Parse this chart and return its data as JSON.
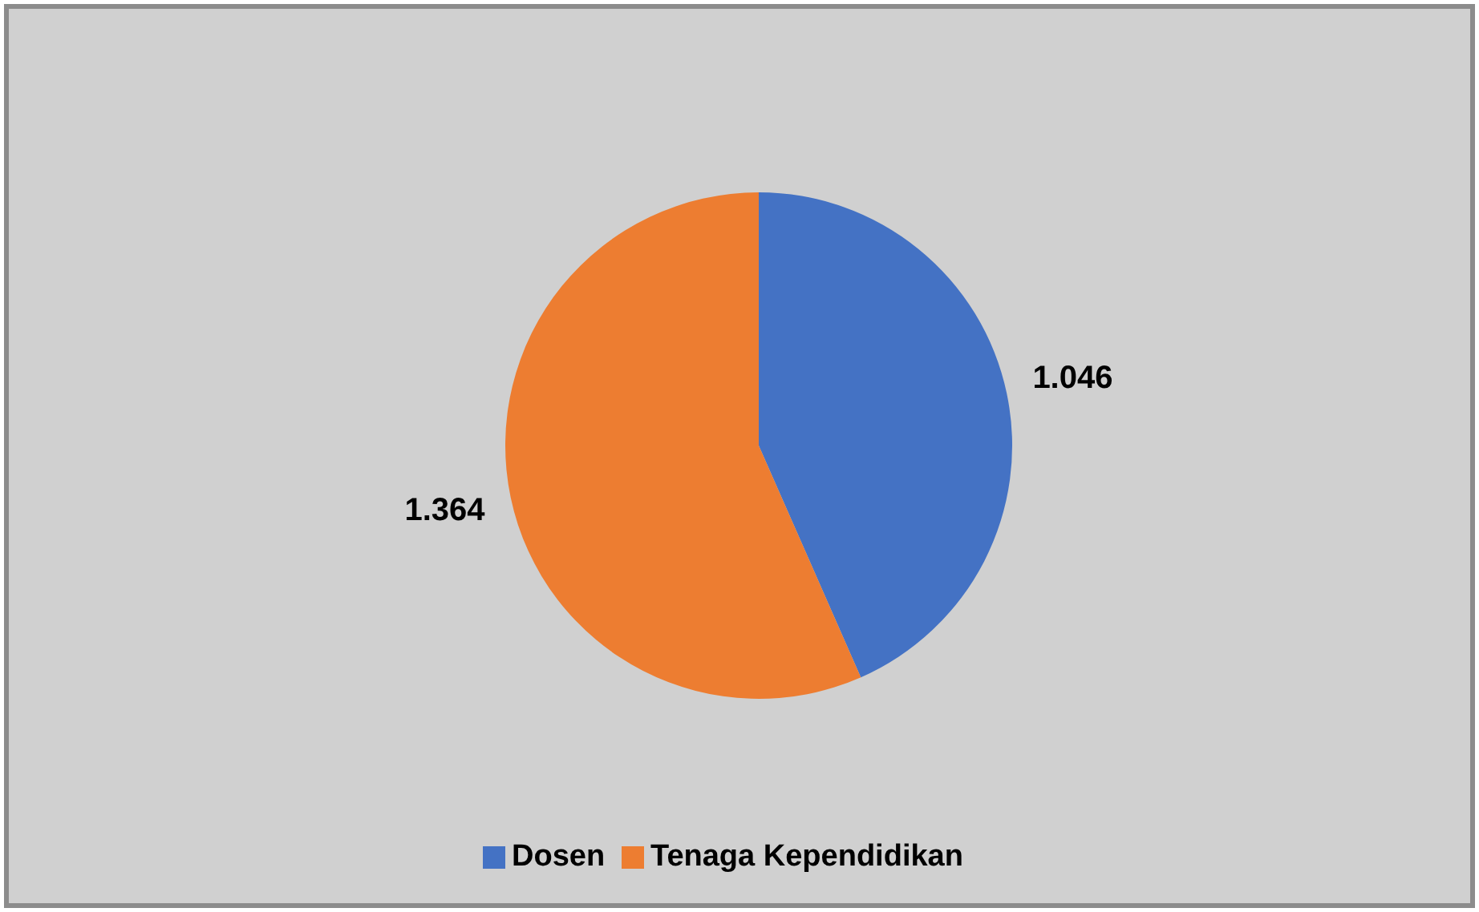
{
  "chart_data": {
    "type": "pie",
    "categories": [
      "Dosen",
      "Tenaga Kependidikan"
    ],
    "values": [
      1046,
      1364
    ],
    "colors": [
      "#4472c4",
      "#ed7d31"
    ],
    "value_labels": [
      "1.046",
      "1.364"
    ],
    "legend": "bottom"
  }
}
